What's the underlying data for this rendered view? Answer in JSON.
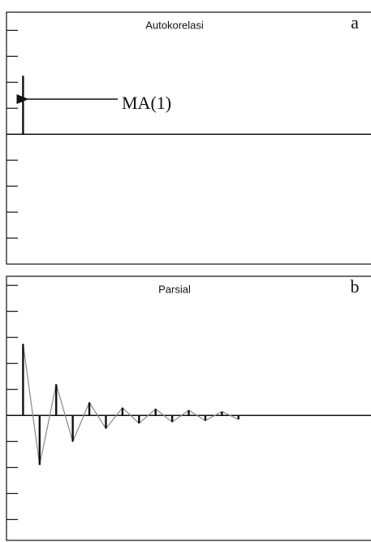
{
  "chart_data": [
    {
      "type": "bar",
      "title": "Autokorelasi",
      "panel_label": "a",
      "annotation": "MA(1)",
      "x": [
        1
      ],
      "values": [
        0.45
      ],
      "color": "#111111",
      "xlim": [
        0,
        22
      ],
      "ylim": [
        -1,
        0.94
      ],
      "yticks": [
        -0.8,
        -0.6,
        -0.4,
        -0.2,
        0,
        0.2,
        0.4,
        0.6,
        0.8
      ]
    },
    {
      "type": "bar",
      "title": "Parsial",
      "panel_label": "b",
      "x": [
        1,
        2,
        3,
        4,
        5,
        6,
        7,
        8,
        9,
        10,
        11,
        12,
        13,
        14
      ],
      "values": [
        0.55,
        -0.38,
        0.24,
        -0.2,
        0.1,
        -0.1,
        0.06,
        -0.06,
        0.05,
        -0.05,
        0.04,
        -0.04,
        0.03,
        -0.03
      ],
      "color": "#111111",
      "line_color": "#888888",
      "xlim": [
        0,
        22
      ],
      "ylim": [
        -0.96,
        1.07
      ],
      "yticks": [
        -0.8,
        -0.6,
        -0.4,
        -0.2,
        0,
        0.2,
        0.4,
        0.6,
        0.8,
        1.0
      ]
    }
  ]
}
